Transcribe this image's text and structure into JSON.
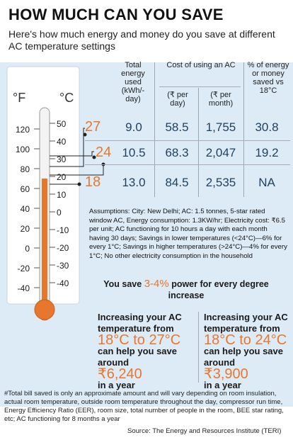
{
  "title": "HOW MUCH CAN YOU SAVE",
  "subtitle": "Here's how much energy and money do you save at different AC temperature settings",
  "thermometer": {
    "f_label": "°F",
    "c_label": "°C",
    "f_ticks": [
      "120",
      "100",
      "80",
      "60",
      "40",
      "20",
      "0",
      "-20",
      "-40"
    ],
    "c_ticks": [
      "50",
      "40",
      "30",
      "20",
      "10",
      "0",
      "-10",
      "-20",
      "-30",
      "-40"
    ]
  },
  "table": {
    "headers": {
      "energy": "Total energy used (kWh/-day)",
      "cost_group": "Cost of using an AC",
      "cost_day": "(₹ per day)",
      "cost_month": "(₹ per month)",
      "saved": "% of energy or money saved vs 18°C"
    },
    "rows": [
      {
        "temp": "27",
        "energy": "9.0",
        "day": "58.5",
        "month": "1,755",
        "saved": "30.8"
      },
      {
        "temp": "24",
        "energy": "10.5",
        "day": "68.3",
        "month": "2,047",
        "saved": "19.2"
      },
      {
        "temp": "18",
        "energy": "13.0",
        "day": "84.5",
        "month": "2,535",
        "saved": "NA"
      }
    ]
  },
  "assumptions": "Assumptions: City: New Delhi; AC: 1.5 tonnes, 5-star rated window AC, Energy consumption: 1.3KW/hr; Electricity cost: ₹6.5 per unit; AC functioning for 10 hours a day with each month having 30 days; Savings in lower temperatures (<24°C)—6% for every 1°C; Savings in higher temperatures (>24°C)—4% for every 1°C; No other electricity consumption in the household",
  "save_line": {
    "pre": "You save ",
    "value": "3-4%",
    "post": " power for every degree increase"
  },
  "box1": {
    "l1": "Increasing your AC temperature from",
    "range": "18°C to 27°C",
    "l2": "can help you save around",
    "amount": "₹6,240",
    "l3": "in a year"
  },
  "box2": {
    "l1": "Increasing your AC temperature from",
    "range": "18°C to 24°C",
    "l2": "can help you save around",
    "amount": "₹3,900",
    "l3": "in a year"
  },
  "footnote": "#Total bill saved is only an approximate amount and will vary depending on room insulation, actual room temperature, outside room temperature throughout the day, compressor run time, Energy Efficiency Ratio (EER), room size, total number of people in the room, BEE star rating, etc; AC functioning for 8 months a year",
  "source": "Source: The Energy and Resources Institute (TERI)",
  "colors": {
    "accent": "#e8772e",
    "panel": "#dcebf6",
    "numbers": "#1f3f5f"
  }
}
